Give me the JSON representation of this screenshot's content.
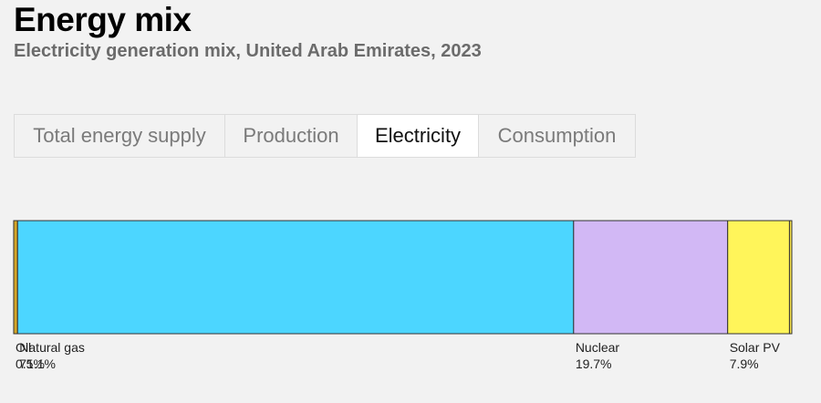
{
  "header": {
    "title": "Energy mix",
    "subtitle": "Electricity generation mix, United Arab Emirates, 2023"
  },
  "tabs": [
    {
      "label": "Total energy supply",
      "active": false
    },
    {
      "label": "Production",
      "active": false
    },
    {
      "label": "Electricity",
      "active": true
    },
    {
      "label": "Consumption",
      "active": false
    }
  ],
  "chart_data": {
    "type": "bar",
    "orientation": "horizontal-stacked-100",
    "title": "",
    "xlabel": "",
    "ylabel": "",
    "grid": false,
    "legend": "labels-below-segments",
    "unit": "%",
    "series": [
      {
        "name": "Oil",
        "value": 0.5,
        "value_label": "0.5%",
        "color": "#d4a526",
        "labeled": true
      },
      {
        "name": "Natural gas",
        "value": 71.1,
        "value_label": "71.1%",
        "color": "#4cd6ff",
        "labeled": true
      },
      {
        "name": "Nuclear",
        "value": 19.7,
        "value_label": "19.7%",
        "color": "#d2b8f5",
        "labeled": true
      },
      {
        "name": "Solar PV",
        "value": 7.9,
        "value_label": "7.9%",
        "color": "#fff55a",
        "labeled": true
      },
      {
        "name": "",
        "value": 0.3,
        "value_label": "",
        "color": "#f5e04a",
        "labeled": false
      }
    ]
  }
}
